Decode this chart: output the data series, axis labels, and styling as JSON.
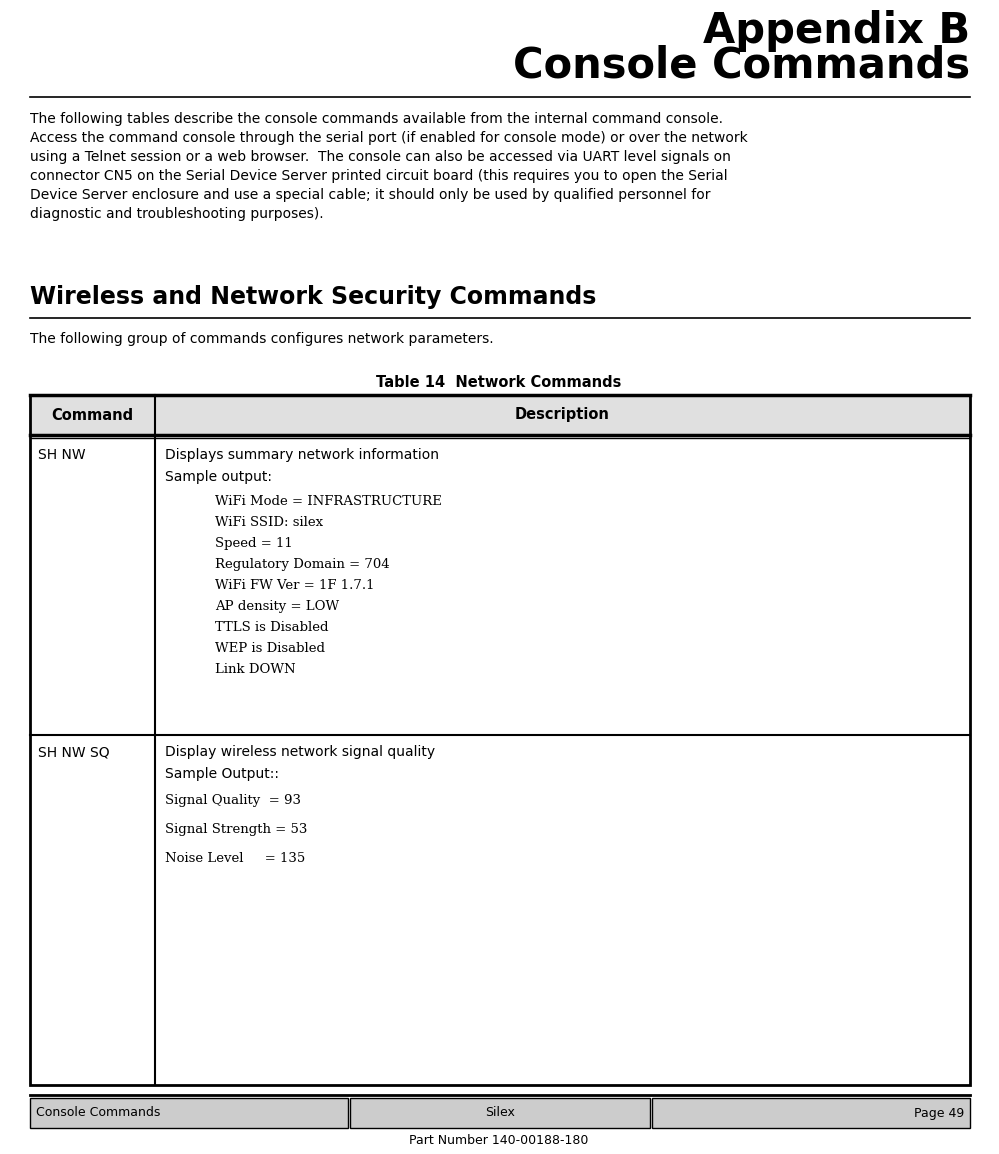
{
  "page_width": 9.99,
  "page_height": 11.54,
  "dpi": 100,
  "bg_color": "#ffffff",
  "title_line1": "Appendix B",
  "title_line2": "Console Commands",
  "title_fontsize": 30,
  "body_text_lines": [
    "The following tables describe the console commands available from the internal command console.",
    "Access the command console through the serial port (if enabled for console mode) or over the network",
    "using a Telnet session or a web browser.  The console can also be accessed via UART level signals on",
    "connector CN5 on the Serial Device Server printed circuit board (this requires you to open the Serial",
    "Device Server enclosure and use a special cable; it should only be used by qualified personnel for",
    "diagnostic and troubleshooting purposes)."
  ],
  "section_title": "Wireless and Network Security Commands",
  "section_subtitle": "The following group of commands configures network parameters.",
  "table_title": "Table 14  Network Commands",
  "col1_header": "Command",
  "col2_header": "Description",
  "footer_left": "Console Commands",
  "footer_center": "Silex",
  "footer_right": "Page 49",
  "footer_bottom": "Part Number 140-00188-180",
  "rows": [
    {
      "cmd": "SH NW",
      "desc_normal": [
        "Displays summary network information",
        "Sample output:"
      ],
      "desc_mono": [
        "WiFi Mode = INFRASTRUCTURE",
        "WiFi SSID: silex",
        "Speed = 11",
        "Regulatory Domain = 704",
        "WiFi FW Ver = 1F 1.7.1",
        "AP density = LOW",
        "TTLS is Disabled",
        "WEP is Disabled",
        "Link DOWN"
      ]
    },
    {
      "cmd": "SH NW SQ",
      "desc_normal": [
        "Display wireless network signal quality",
        "Sample Output::"
      ],
      "desc_mono": [
        "Signal Quality  = 93",
        "Signal Strength = 53",
        "Noise Level     = 135"
      ]
    }
  ]
}
